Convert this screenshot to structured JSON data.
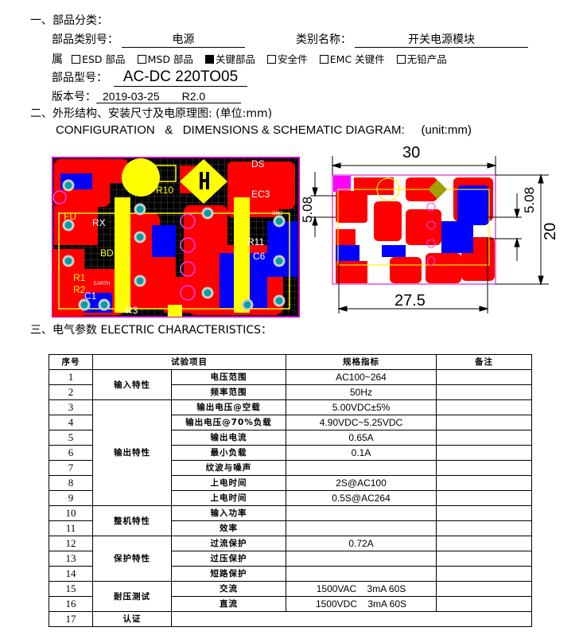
{
  "section1": {
    "heading": "一、部品分类：",
    "category_no_label": "部品类别号：",
    "category_no_value": "电源",
    "category_name_label": "类别名称：",
    "category_name_value": "开关电源模块",
    "attribute_label": "属",
    "attributes": [
      {
        "label": "ESD 部品",
        "checked": false
      },
      {
        "label": "MSD 部品",
        "checked": false
      },
      {
        "label": "关键部品",
        "checked": true
      },
      {
        "label": "安全件",
        "checked": false
      },
      {
        "label": "EMC 关键件",
        "checked": false
      },
      {
        "label": "无铅产品",
        "checked": false
      }
    ],
    "model_label": "部品型号：",
    "model_value": "AC-DC 220TO05",
    "version_label": "版本号：",
    "version_date": "2019-03-25",
    "version_rev": "R2.0"
  },
  "section2": {
    "heading": "二、外形结构、安装尺寸及电原理图: (单位:mm)",
    "subheading": "CONFIGURATION   &   DIMENSIONS & SCHEMATIC DIAGRAM:     (unit:mm)",
    "pcb_labels": [
      "FU",
      "RX",
      "BD",
      "EC3",
      "DS",
      "R10",
      "R11",
      "C6",
      "C1",
      "R3",
      "R1",
      "R2",
      "EARTH",
      "GND"
    ],
    "dimensions": {
      "width": "30",
      "inner_width": "27.5",
      "height": "20",
      "pitch_left": "5.08",
      "pitch_right": "5.08"
    },
    "colors": {
      "top_copper": "#ff0000",
      "bottom_copper": "#0000ff",
      "silkscreen": "#ffff00",
      "board_bg": "#000000",
      "pad": "#00a0a0"
    }
  },
  "section3": {
    "heading": "三、电气参数 ELECTRIC    CHARACTERISTICS：",
    "headers": [
      "序号",
      "试验项目",
      "规格指标",
      "备注"
    ],
    "groups": [
      "输入特性",
      "输出特性",
      "整机特性",
      "保护特性",
      "耐压测试",
      "认证"
    ],
    "rows": [
      {
        "no": "1",
        "item": "电压范围",
        "spec": "AC100~264"
      },
      {
        "no": "2",
        "item": "频率范围",
        "spec": "50Hz"
      },
      {
        "no": "3",
        "item": "输出电压@空载",
        "spec": "5.00VDC±5%"
      },
      {
        "no": "4",
        "item": "输出电压@70%负载",
        "spec": "4.90VDC~5.25VDC"
      },
      {
        "no": "5",
        "item": "输出电流",
        "spec": "0.65A"
      },
      {
        "no": "6",
        "item": "最小负载",
        "spec": "0.1A"
      },
      {
        "no": "7",
        "item": "纹波与噪声",
        "spec": ""
      },
      {
        "no": "8",
        "item": "上电时间",
        "spec": "2S@AC100"
      },
      {
        "no": "9",
        "item": "上电时间",
        "spec": "0.5S@AC264"
      },
      {
        "no": "10",
        "item": "输入功率",
        "spec": ""
      },
      {
        "no": "11",
        "item": "效率",
        "spec": ""
      },
      {
        "no": "12",
        "item": "过流保护",
        "spec": "0.72A"
      },
      {
        "no": "13",
        "item": "过压保护",
        "spec": ""
      },
      {
        "no": "14",
        "item": "短路保护",
        "spec": ""
      },
      {
        "no": "15",
        "item": "交流",
        "spec": "1500VAC    3mA 60S"
      },
      {
        "no": "16",
        "item": "直流",
        "spec": "1500VDC    3mA 60S"
      },
      {
        "no": "17",
        "item": "",
        "spec": ""
      }
    ]
  }
}
